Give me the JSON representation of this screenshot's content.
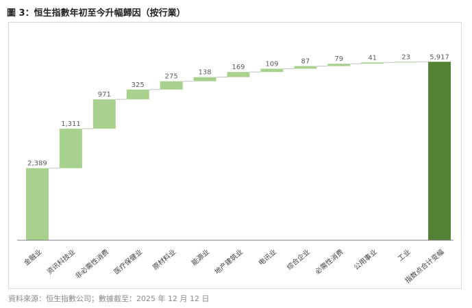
{
  "figure": {
    "title": "圖 3：恒生指數年初至今升幅歸因（按行業）",
    "source": "資料來源：恒生指數公司；數據截至：2025 年 12 月 12 日"
  },
  "chart_data": {
    "type": "bar",
    "subtype": "waterfall",
    "title": "",
    "xlabel": "",
    "ylabel": "",
    "ylim": [
      0,
      6150
    ],
    "grid": false,
    "legend": "none",
    "categories": [
      "金融业",
      "资讯科技业",
      "非必需性消费",
      "医疗保健业",
      "原材料业",
      "能源业",
      "地产建筑业",
      "电讯业",
      "综合企业",
      "必需性消费",
      "公用事业",
      "工业",
      "指数点合计变幅"
    ],
    "values": [
      2389,
      1311,
      971,
      325,
      275,
      138,
      169,
      109,
      87,
      79,
      41,
      23,
      5917
    ],
    "labels": [
      "2,389",
      "1,311",
      "971",
      "325",
      "275",
      "138",
      "169",
      "109",
      "87",
      "79",
      "41",
      "23",
      "5,917"
    ],
    "is_total": [
      false,
      false,
      false,
      false,
      false,
      false,
      false,
      false,
      false,
      false,
      false,
      false,
      true
    ],
    "colors": {
      "increase": "#a9d18e",
      "total": "#548235",
      "axis": "#7f7f7f",
      "connector": "#bfbfbf",
      "label": "#595959"
    }
  }
}
